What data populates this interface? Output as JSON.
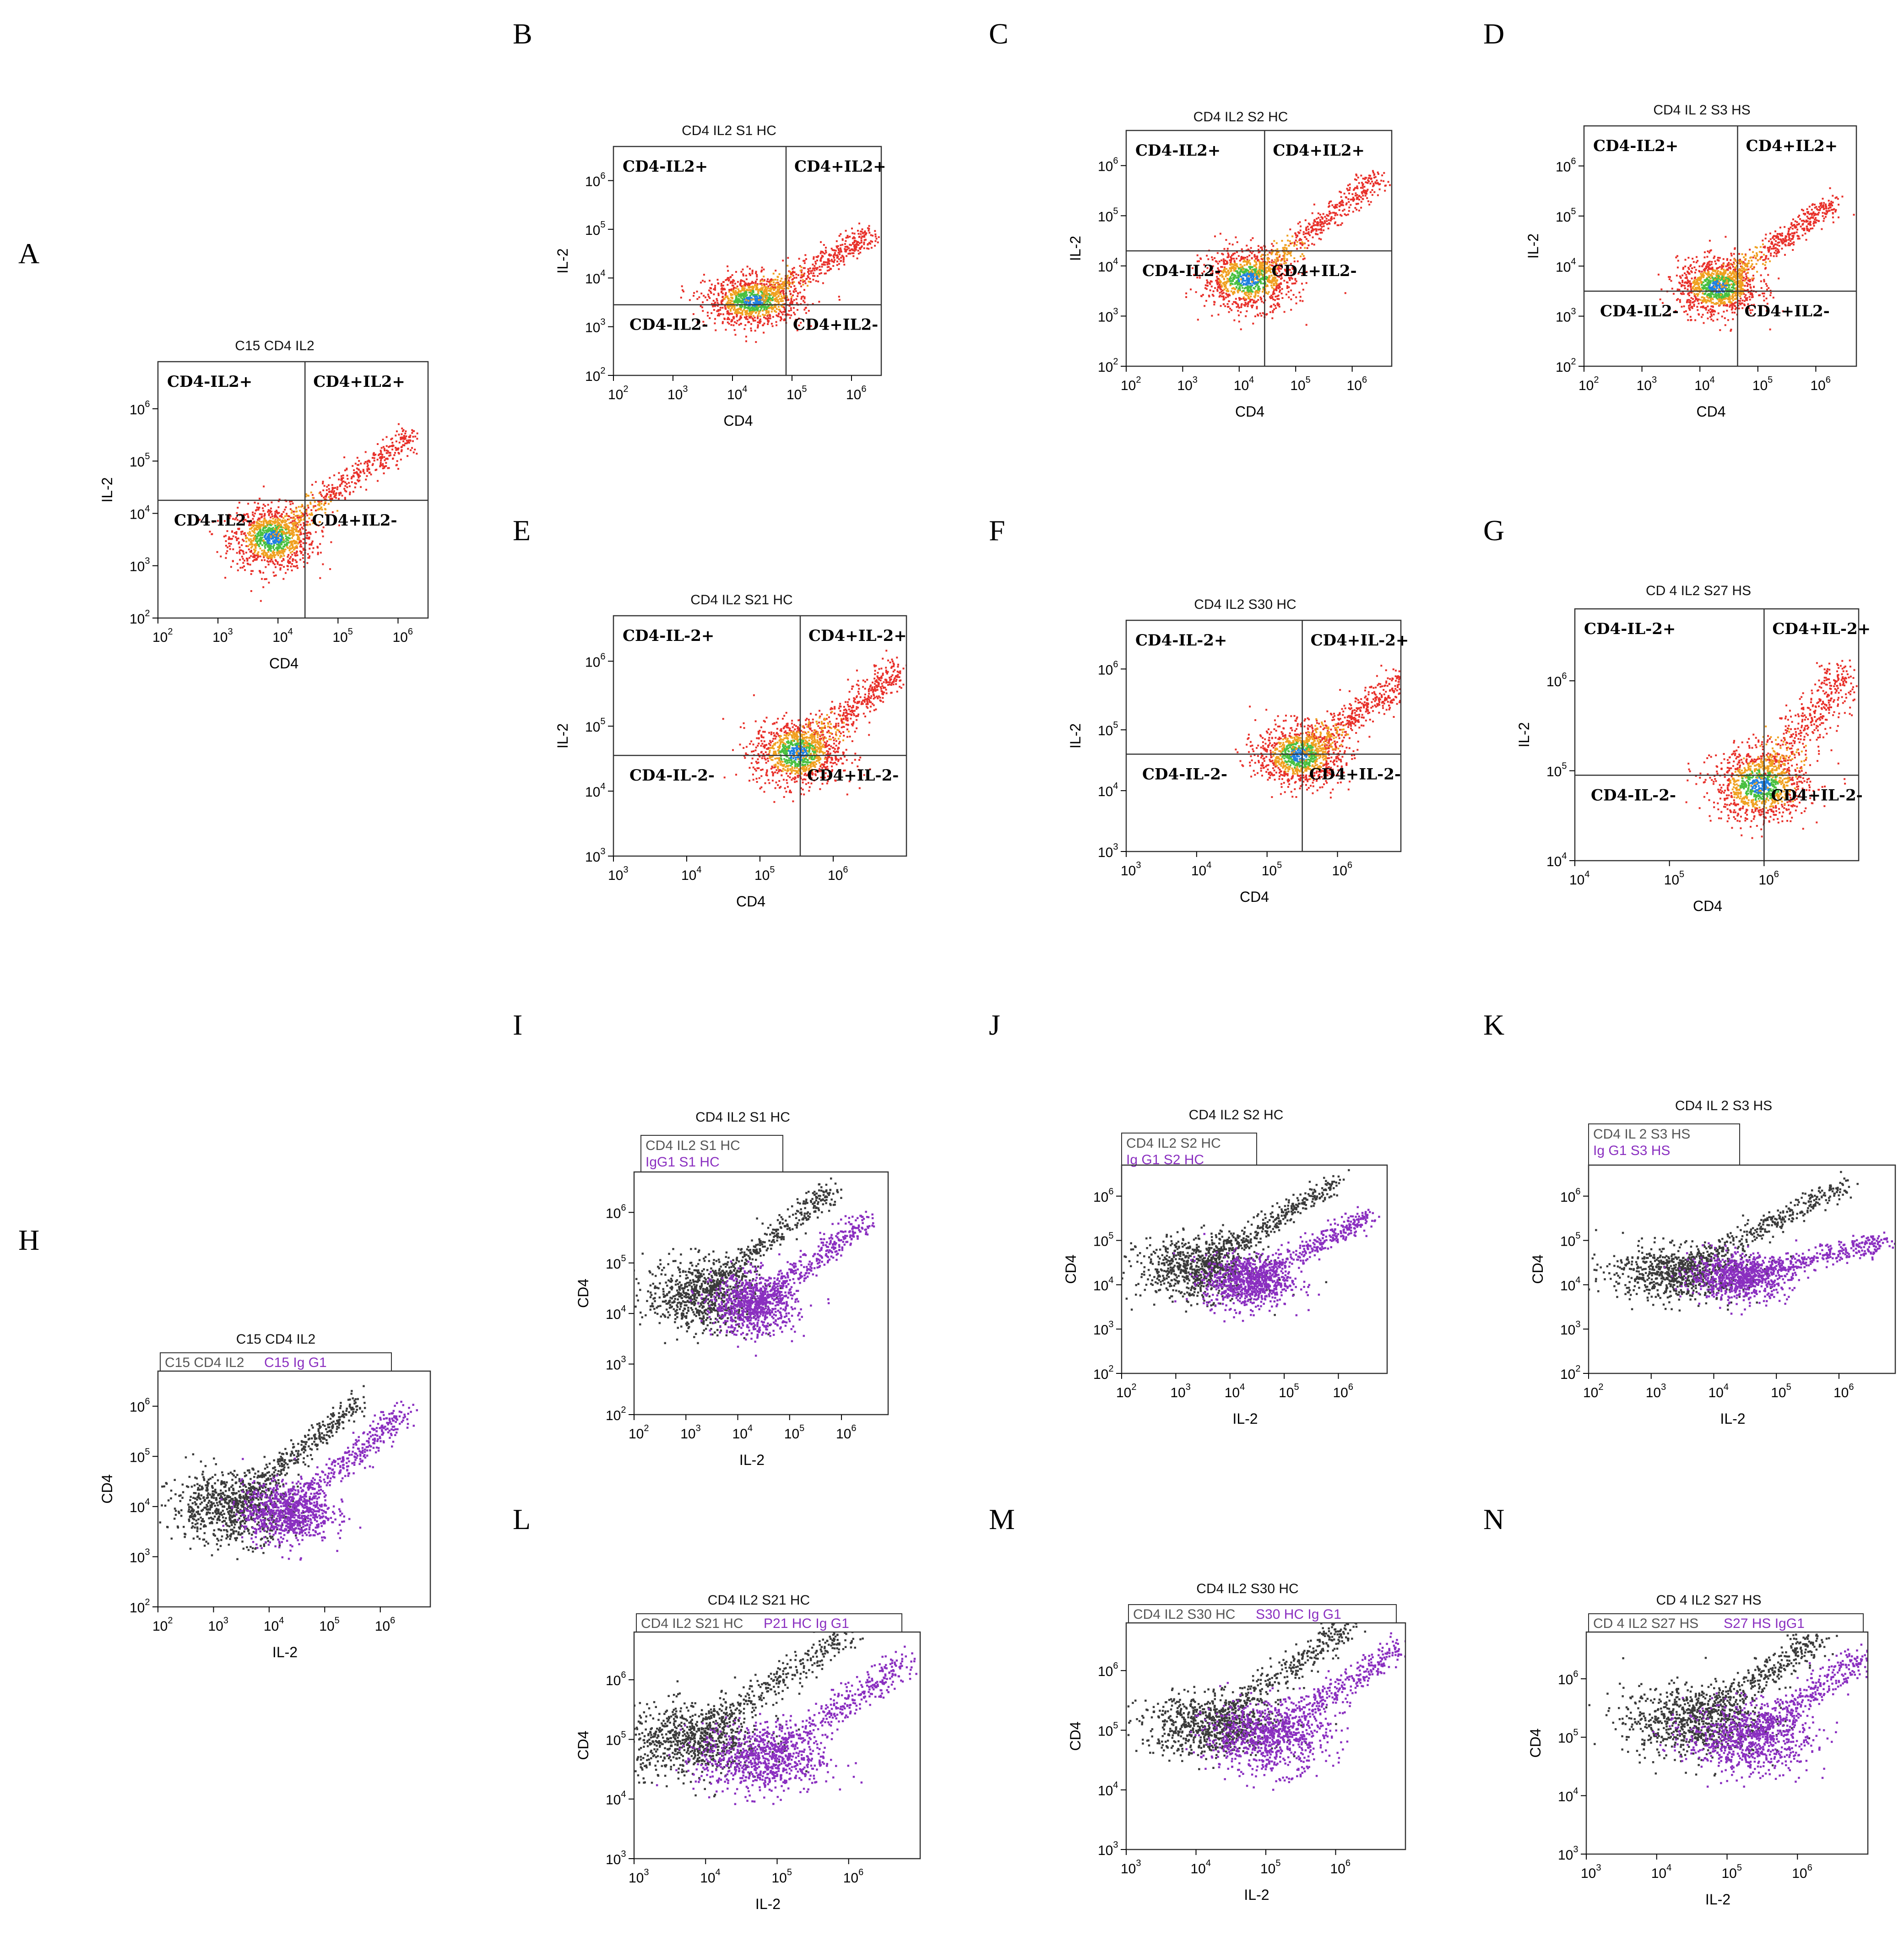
{
  "colors": {
    "density_low": "#e8302a",
    "density_mid": "#f0a020",
    "density_high": "#48c040",
    "density_core": "#2080e0",
    "sample_series": "#3a3a3a",
    "isotype_series": "#8a2fc0",
    "gate_line": "#333333",
    "frame": "#333333"
  },
  "chart_data": [
    {
      "letter": "A",
      "type": "scatter",
      "kind": "quadrant",
      "title": "C15 CD4 IL2",
      "xlabel": "CD4",
      "ylabel": "IL-2",
      "xlim_exp": [
        2,
        6.5
      ],
      "ylim_exp": [
        2,
        6.9
      ],
      "xticks_exp": [
        2,
        3,
        4,
        5,
        6
      ],
      "yticks_exp": [
        2,
        3,
        4,
        5,
        6
      ],
      "gate": {
        "x_exp": 4.45,
        "y_exp": 4.25
      },
      "quadrant_labels": [
        "CD4-IL2+",
        "CD4+IL2+",
        "CD4-IL2-",
        "CD4+IL2-"
      ],
      "cloud": {
        "center_exp": [
          3.9,
          3.55
        ],
        "spread_exp": [
          0.35,
          0.3
        ],
        "tail_end_exp": [
          6.2,
          5.5
        ]
      }
    },
    {
      "letter": "B",
      "type": "scatter",
      "kind": "quadrant",
      "title": "CD4 IL2 S1 HC",
      "xlabel": "CD4",
      "ylabel": "IL-2",
      "xlim_exp": [
        2,
        6.5
      ],
      "ylim_exp": [
        2,
        6.7
      ],
      "xticks_exp": [
        2,
        3,
        4,
        5,
        6
      ],
      "yticks_exp": [
        2,
        3,
        4,
        5,
        6
      ],
      "gate": {
        "x_exp": 4.9,
        "y_exp": 3.45
      },
      "quadrant_labels": [
        "CD4-IL2+",
        "CD4+IL2+",
        "CD4-IL2-",
        "CD4+IL2-"
      ],
      "cloud": {
        "center_exp": [
          4.35,
          3.55
        ],
        "spread_exp": [
          0.4,
          0.25
        ],
        "tail_end_exp": [
          6.3,
          4.9
        ]
      }
    },
    {
      "letter": "C",
      "type": "scatter",
      "kind": "quadrant",
      "title": "CD4 IL2 S2 HC",
      "xlabel": "CD4",
      "ylabel": "IL-2",
      "xlim_exp": [
        2,
        6.7
      ],
      "ylim_exp": [
        2,
        6.7
      ],
      "xticks_exp": [
        2,
        3,
        4,
        5,
        6
      ],
      "yticks_exp": [
        2,
        3,
        4,
        5,
        6
      ],
      "gate": {
        "x_exp": 4.45,
        "y_exp": 4.3
      },
      "quadrant_labels": [
        "CD4-IL2+",
        "CD4+IL2+",
        "CD4-IL2-",
        "CD4+IL2-"
      ],
      "cloud": {
        "center_exp": [
          4.15,
          3.75
        ],
        "spread_exp": [
          0.4,
          0.3
        ],
        "tail_end_exp": [
          6.5,
          5.8
        ]
      }
    },
    {
      "letter": "D",
      "type": "scatter",
      "kind": "quadrant",
      "title": "CD4 IL 2 S3 HS",
      "xlabel": "CD4",
      "ylabel": "IL-2",
      "xlim_exp": [
        2,
        6.7
      ],
      "ylim_exp": [
        2,
        6.8
      ],
      "xticks_exp": [
        2,
        3,
        4,
        5,
        6
      ],
      "yticks_exp": [
        2,
        3,
        4,
        5,
        6
      ],
      "gate": {
        "x_exp": 4.65,
        "y_exp": 3.5
      },
      "quadrant_labels": [
        "CD4-IL2+",
        "CD4+IL2+",
        "CD4-IL2-",
        "CD4+IL2-"
      ],
      "cloud": {
        "center_exp": [
          4.3,
          3.6
        ],
        "spread_exp": [
          0.35,
          0.28
        ],
        "tail_end_exp": [
          6.3,
          5.3
        ]
      }
    },
    {
      "letter": "E",
      "type": "scatter",
      "kind": "quadrant",
      "title": "CD4 IL2 S21 HC",
      "xlabel": "CD4",
      "ylabel": "IL-2",
      "xlim_exp": [
        3,
        7
      ],
      "ylim_exp": [
        3,
        6.7
      ],
      "xticks_exp": [
        3,
        4,
        5,
        6
      ],
      "yticks_exp": [
        3,
        4,
        5,
        6
      ],
      "gate": {
        "x_exp": 5.55,
        "y_exp": 4.55
      },
      "quadrant_labels": [
        "CD4-IL-2+",
        "CD4+IL-2+",
        "CD4-IL-2-",
        "CD4+IL-2-"
      ],
      "cloud": {
        "center_exp": [
          5.5,
          4.6
        ],
        "spread_exp": [
          0.3,
          0.25
        ],
        "tail_end_exp": [
          6.9,
          5.9
        ]
      }
    },
    {
      "letter": "F",
      "type": "scatter",
      "kind": "quadrant",
      "title": "CD4 IL2 S30 HC",
      "xlabel": "CD4",
      "ylabel": "IL-2",
      "xlim_exp": [
        3,
        6.9
      ],
      "ylim_exp": [
        3,
        6.8
      ],
      "xticks_exp": [
        3,
        4,
        5,
        6
      ],
      "yticks_exp": [
        3,
        4,
        5,
        6
      ],
      "gate": {
        "x_exp": 5.5,
        "y_exp": 4.6
      },
      "quadrant_labels": [
        "CD4-IL-2+",
        "CD4+IL-2+",
        "CD4-IL-2-",
        "CD4+IL-2-"
      ],
      "cloud": {
        "center_exp": [
          5.45,
          4.6
        ],
        "spread_exp": [
          0.3,
          0.25
        ],
        "tail_end_exp": [
          6.9,
          5.8
        ]
      }
    },
    {
      "letter": "G",
      "type": "scatter",
      "kind": "quadrant",
      "title": "CD 4 IL2 S27 HS",
      "xlabel": "CD4",
      "ylabel": "IL-2",
      "xlim_exp": [
        4,
        7
      ],
      "ylim_exp": [
        4,
        6.8
      ],
      "xticks_exp": [
        4,
        5,
        6
      ],
      "yticks_exp": [
        4,
        5,
        6
      ],
      "gate": {
        "x_exp": 6.0,
        "y_exp": 4.95
      },
      "quadrant_labels": [
        "CD4-IL-2+",
        "CD4+IL-2+",
        "CD4-IL-2-",
        "CD4+IL-2-"
      ],
      "cloud": {
        "center_exp": [
          5.95,
          4.85
        ],
        "spread_exp": [
          0.25,
          0.2
        ],
        "tail_end_exp": [
          6.85,
          6.1
        ]
      }
    },
    {
      "letter": "H",
      "type": "scatter",
      "kind": "overlay",
      "title": "C15 CD4 IL2",
      "xlabel": "IL-2",
      "ylabel": "CD4",
      "xlim_exp": [
        2,
        6.9
      ],
      "ylim_exp": [
        2,
        6.7
      ],
      "xticks_exp": [
        2,
        3,
        4,
        5,
        6
      ],
      "yticks_exp": [
        2,
        3,
        4,
        5,
        6
      ],
      "legend": [
        "C15 CD4 IL2",
        "C15 Ig G1"
      ],
      "sample": {
        "center_exp": [
          3.3,
          4.0
        ],
        "spread_exp": [
          0.55,
          0.35
        ],
        "tail_end_exp": [
          5.6,
          6.1
        ]
      },
      "isotype": {
        "center_exp": [
          4.3,
          3.9
        ],
        "spread_exp": [
          0.4,
          0.3
        ],
        "tail_end_exp": [
          6.4,
          5.9
        ]
      }
    },
    {
      "letter": "I",
      "type": "scatter",
      "kind": "overlay",
      "title": "CD4 IL2 S1 HC",
      "xlabel": "IL-2",
      "ylabel": "CD4",
      "xlim_exp": [
        2,
        6.9
      ],
      "ylim_exp": [
        2,
        6.8
      ],
      "xticks_exp": [
        2,
        3,
        4,
        5,
        6
      ],
      "yticks_exp": [
        2,
        3,
        4,
        5,
        6
      ],
      "legend": [
        "CD4 IL2 S1 HC",
        "IgG1 S1 HC"
      ],
      "sample": {
        "center_exp": [
          3.3,
          4.4
        ],
        "spread_exp": [
          0.55,
          0.35
        ],
        "tail_end_exp": [
          5.8,
          6.5
        ]
      },
      "isotype": {
        "center_exp": [
          4.3,
          4.2
        ],
        "spread_exp": [
          0.4,
          0.3
        ],
        "tail_end_exp": [
          6.5,
          5.9
        ]
      }
    },
    {
      "letter": "J",
      "type": "scatter",
      "kind": "overlay",
      "title": "CD4 IL2 S2 HC",
      "xlabel": "IL-2",
      "ylabel": "CD4",
      "xlim_exp": [
        2,
        6.9
      ],
      "ylim_exp": [
        2,
        6.7
      ],
      "xticks_exp": [
        2,
        3,
        4,
        5,
        6
      ],
      "yticks_exp": [
        2,
        3,
        4,
        5,
        6
      ],
      "legend": [
        "CD4 IL2 S2 HC",
        "Ig G1 S2 HC"
      ],
      "sample": {
        "center_exp": [
          3.4,
          4.4
        ],
        "spread_exp": [
          0.55,
          0.35
        ],
        "tail_end_exp": [
          6.0,
          6.4
        ]
      },
      "isotype": {
        "center_exp": [
          4.3,
          4.1
        ],
        "spread_exp": [
          0.4,
          0.3
        ],
        "tail_end_exp": [
          6.6,
          5.6
        ]
      }
    },
    {
      "letter": "K",
      "type": "scatter",
      "kind": "overlay",
      "title": "CD4 IL 2 S3 HS",
      "xlabel": "IL-2",
      "ylabel": "CD4",
      "xlim_exp": [
        2,
        6.9
      ],
      "ylim_exp": [
        2,
        6.7
      ],
      "xticks_exp": [
        2,
        3,
        4,
        5,
        6
      ],
      "yticks_exp": [
        2,
        3,
        4,
        5,
        6
      ],
      "legend": [
        "CD4 IL 2 S3 HS",
        "Ig G1 S3 HS"
      ],
      "sample": {
        "center_exp": [
          3.4,
          4.3
        ],
        "spread_exp": [
          0.55,
          0.3
        ],
        "tail_end_exp": [
          6.1,
          6.3
        ]
      },
      "isotype": {
        "center_exp": [
          4.4,
          4.2
        ],
        "spread_exp": [
          0.4,
          0.25
        ],
        "tail_end_exp": [
          6.7,
          5.0
        ]
      }
    },
    {
      "letter": "L",
      "type": "scatter",
      "kind": "overlay",
      "title": "CD4 IL2 S21 HC",
      "xlabel": "IL-2",
      "ylabel": "CD4",
      "xlim_exp": [
        3,
        7
      ],
      "ylim_exp": [
        3,
        6.8
      ],
      "xticks_exp": [
        3,
        4,
        5,
        6
      ],
      "yticks_exp": [
        3,
        4,
        5,
        6
      ],
      "legend": [
        "CD4 IL2 S21 HC",
        "P21 HC Ig G1"
      ],
      "sample": {
        "center_exp": [
          3.8,
          5.0
        ],
        "spread_exp": [
          0.5,
          0.3
        ],
        "tail_end_exp": [
          6.0,
          6.8
        ]
      },
      "isotype": {
        "center_exp": [
          4.8,
          4.7
        ],
        "spread_exp": [
          0.45,
          0.3
        ],
        "tail_end_exp": [
          6.8,
          6.3
        ]
      }
    },
    {
      "letter": "M",
      "type": "scatter",
      "kind": "overlay",
      "title": "CD4 IL2 S30 HC",
      "xlabel": "IL-2",
      "ylabel": "CD4",
      "xlim_exp": [
        3,
        7
      ],
      "ylim_exp": [
        3,
        6.8
      ],
      "xticks_exp": [
        3,
        4,
        5,
        6
      ],
      "yticks_exp": [
        3,
        4,
        5,
        6
      ],
      "legend": [
        "CD4 IL2 S30 HC",
        "S30 HC Ig G1"
      ],
      "sample": {
        "center_exp": [
          4.2,
          5.1
        ],
        "spread_exp": [
          0.5,
          0.25
        ],
        "tail_end_exp": [
          6.2,
          6.8
        ]
      },
      "isotype": {
        "center_exp": [
          5.0,
          4.9
        ],
        "spread_exp": [
          0.45,
          0.3
        ],
        "tail_end_exp": [
          6.9,
          6.4
        ]
      }
    },
    {
      "letter": "N",
      "type": "scatter",
      "kind": "overlay",
      "title": "CD 4 IL2 S27 HS",
      "xlabel": "IL-2",
      "ylabel": "CD4",
      "xlim_exp": [
        3,
        7
      ],
      "ylim_exp": [
        3,
        6.8
      ],
      "xticks_exp": [
        3,
        4,
        5,
        6
      ],
      "yticks_exp": [
        3,
        4,
        5,
        6
      ],
      "legend": [
        "CD 4 IL2 S27 HS",
        "S27 HS IgG1"
      ],
      "sample": {
        "center_exp": [
          4.5,
          5.3
        ],
        "spread_exp": [
          0.5,
          0.3
        ],
        "tail_end_exp": [
          6.3,
          6.7
        ]
      },
      "isotype": {
        "center_exp": [
          5.3,
          5.0
        ],
        "spread_exp": [
          0.45,
          0.3
        ],
        "tail_end_exp": [
          6.9,
          6.4
        ]
      }
    }
  ]
}
